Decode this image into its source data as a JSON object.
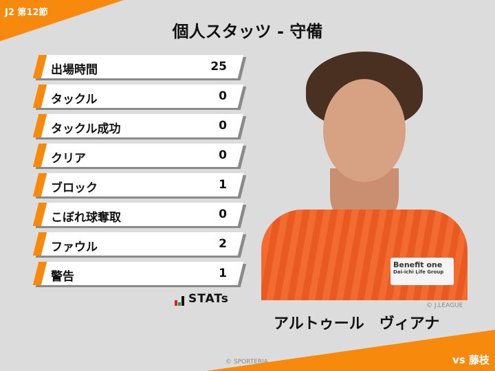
{
  "header": {
    "round": "J2 第12節",
    "title": "個人スタッツ - 守備",
    "opponent": "vs 藤枝"
  },
  "stats": [
    {
      "label": "出場時間",
      "value": "25"
    },
    {
      "label": "タックル",
      "value": "0"
    },
    {
      "label": "タックル成功",
      "value": "0"
    },
    {
      "label": "クリア",
      "value": "0"
    },
    {
      "label": "ブロック",
      "value": "1"
    },
    {
      "label": "こぼれ球奪取",
      "value": "0"
    },
    {
      "label": "ファウル",
      "value": "2"
    },
    {
      "label": "警告",
      "value": "1"
    }
  ],
  "stats_logo": "STATs",
  "player": {
    "name": "アルトゥール　ヴィアナ",
    "photo_credit": "© J.LEAGUE",
    "sponsor": "Benefit one",
    "sponsor_sub": "Dai-ichi Life Group"
  },
  "footer": {
    "credit": "© SPORTERIA"
  },
  "colors": {
    "accent": "#f7890c",
    "background": "#dcdcdc"
  }
}
